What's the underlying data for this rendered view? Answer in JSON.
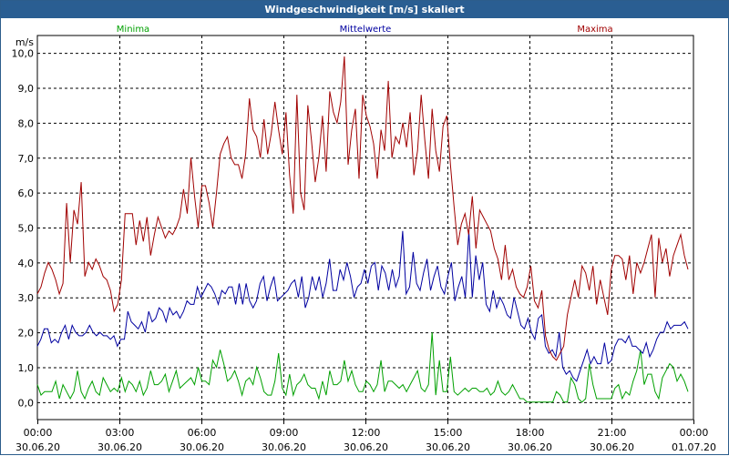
{
  "window": {
    "title": "Windgeschwindigkeit [m/s] skaliert"
  },
  "chart_data": {
    "type": "line",
    "ylabel": "m/s",
    "ylim": [
      -0.5,
      10.5
    ],
    "y_ticks": [
      "0,0",
      "1,0",
      "2,0",
      "3,0",
      "4,0",
      "5,0",
      "6,0",
      "7,0",
      "8,0",
      "9,0",
      "10,0"
    ],
    "y_tick_values": [
      0,
      1,
      2,
      3,
      4,
      5,
      6,
      7,
      8,
      9,
      10
    ],
    "x_ticks": [
      {
        "time": "00:00",
        "date": "30.06.20",
        "hour": 0
      },
      {
        "time": "03:00",
        "date": "30.06.20",
        "hour": 3
      },
      {
        "time": "06:00",
        "date": "30.06.20",
        "hour": 6
      },
      {
        "time": "09:00",
        "date": "30.06.20",
        "hour": 9
      },
      {
        "time": "12:00",
        "date": "30.06.20",
        "hour": 12
      },
      {
        "time": "15:00",
        "date": "30.06.20",
        "hour": 15
      },
      {
        "time": "18:00",
        "date": "30.06.20",
        "hour": 18
      },
      {
        "time": "21:00",
        "date": "30.06.20",
        "hour": 21
      },
      {
        "time": "00:00",
        "date": "01.07.20",
        "hour": 24
      }
    ],
    "grid": true,
    "series": [
      {
        "name": "Minima",
        "color": "#00a000",
        "values": [
          0.5,
          0.2,
          0.3,
          0.3,
          0.3,
          0.6,
          0.1,
          0.5,
          0.3,
          0.1,
          0.3,
          0.9,
          0.3,
          0.1,
          0.4,
          0.6,
          0.3,
          0.2,
          0.7,
          0.5,
          0.3,
          0.4,
          0.3,
          0.7,
          0.3,
          0.6,
          0.5,
          0.3,
          0.6,
          0.2,
          0.4,
          0.9,
          0.5,
          0.5,
          0.6,
          0.8,
          0.3,
          0.6,
          0.9,
          0.4,
          0.5,
          0.6,
          0.7,
          0.5,
          1.0,
          0.6,
          0.6,
          0.5,
          1.2,
          1.0,
          1.5,
          1.1,
          0.6,
          0.7,
          0.9,
          0.6,
          0.2,
          0.6,
          0.7,
          0.5,
          1.0,
          0.7,
          0.3,
          0.2,
          0.2,
          0.6,
          1.4,
          0.4,
          0.2,
          0.8,
          0.2,
          0.5,
          0.6,
          0.8,
          0.5,
          0.4,
          0.4,
          0.1,
          0.6,
          0.2,
          0.9,
          0.5,
          0.5,
          0.6,
          1.2,
          0.6,
          0.9,
          0.5,
          0.3,
          0.3,
          0.6,
          0.5,
          0.3,
          0.5,
          1.2,
          0.3,
          0.6,
          0.6,
          0.5,
          0.4,
          0.5,
          0.3,
          0.5,
          0.7,
          0.9,
          0.4,
          0.3,
          0.5,
          2.0,
          0.2,
          1.2,
          0.3,
          0.3,
          1.3,
          0.3,
          0.2,
          0.3,
          0.4,
          0.3,
          0.4,
          0.4,
          0.3,
          0.3,
          0.4,
          0.2,
          0.3,
          0.6,
          0.3,
          0.2,
          0.3,
          0.5,
          0.3,
          0.1,
          0.1,
          0.0,
          0.0,
          0.0,
          0.0,
          0.0,
          0.0,
          0.0,
          0.0,
          0.3,
          0.2,
          0.0,
          0.0,
          0.7,
          0.5,
          0.1,
          0.0,
          0.1,
          1.1,
          0.5,
          0.1,
          0.1,
          0.1,
          0.1,
          0.1,
          0.4,
          0.5,
          0.1,
          0.3,
          0.2,
          0.6,
          0.9,
          1.5,
          0.5,
          0.8,
          0.8,
          0.3,
          0.1,
          0.7,
          0.9,
          1.1,
          1.0,
          0.6,
          0.8,
          0.6,
          0.3
        ]
      },
      {
        "name": "Mittelwerte",
        "color": "#0000a0",
        "values": [
          1.6,
          1.8,
          2.1,
          2.1,
          1.7,
          1.8,
          1.7,
          2.0,
          2.2,
          1.8,
          2.2,
          2.0,
          1.9,
          1.9,
          2.0,
          2.2,
          2.0,
          1.9,
          2.0,
          1.9,
          1.9,
          1.8,
          1.9,
          1.6,
          1.8,
          1.8,
          2.6,
          2.3,
          2.2,
          2.1,
          2.3,
          2.0,
          2.6,
          2.3,
          2.4,
          2.7,
          2.6,
          2.3,
          2.7,
          2.5,
          2.6,
          2.4,
          2.6,
          2.9,
          2.8,
          2.8,
          3.3,
          3.0,
          3.2,
          3.4,
          3.3,
          3.1,
          2.8,
          3.2,
          3.1,
          3.3,
          3.3,
          2.8,
          3.4,
          2.8,
          3.4,
          2.9,
          2.7,
          2.9,
          3.4,
          3.6,
          2.9,
          3.3,
          3.6,
          2.9,
          3.0,
          3.1,
          3.2,
          3.4,
          3.5,
          3.0,
          3.6,
          2.7,
          3.0,
          3.6,
          3.2,
          3.6,
          3.0,
          3.4,
          4.1,
          3.2,
          3.2,
          3.8,
          3.5,
          4.0,
          3.6,
          3.0,
          3.3,
          3.4,
          3.8,
          3.4,
          3.9,
          4.0,
          3.2,
          3.9,
          3.7,
          3.2,
          3.8,
          3.3,
          3.6,
          4.9,
          3.1,
          3.3,
          4.3,
          3.4,
          3.2,
          3.7,
          4.1,
          3.2,
          3.6,
          3.9,
          3.3,
          3.1,
          3.6,
          4.0,
          2.9,
          3.3,
          3.6,
          3.0,
          4.9,
          3.0,
          4.2,
          3.5,
          4.0,
          2.8,
          2.6,
          3.2,
          2.7,
          3.0,
          2.8,
          2.5,
          2.4,
          3.0,
          2.6,
          2.2,
          2.1,
          2.4,
          2.0,
          1.8,
          2.4,
          2.5,
          1.6,
          1.4,
          1.5,
          1.3,
          2.0,
          1.0,
          0.8,
          0.9,
          0.7,
          0.6,
          0.9,
          1.2,
          1.5,
          1.1,
          1.3,
          1.1,
          1.1,
          1.7,
          1.1,
          1.2,
          1.6,
          1.8,
          1.8,
          1.7,
          1.9,
          1.6,
          1.6,
          1.5,
          1.4,
          1.7,
          1.3,
          1.5,
          1.8,
          2.0,
          2.0,
          2.3,
          2.1,
          2.2,
          2.2,
          2.2,
          2.3,
          2.1
        ]
      },
      {
        "name": "Maxima",
        "color": "#a00000",
        "values": [
          3.1,
          3.3,
          3.7,
          4.0,
          3.8,
          3.5,
          3.1,
          3.4,
          5.7,
          4.0,
          5.5,
          5.1,
          6.3,
          3.6,
          4.0,
          3.8,
          4.1,
          3.9,
          3.6,
          3.5,
          3.2,
          2.6,
          2.8,
          3.5,
          5.4,
          5.4,
          5.4,
          4.5,
          5.2,
          4.6,
          5.3,
          4.2,
          4.8,
          5.3,
          5.0,
          4.7,
          4.9,
          4.8,
          5.0,
          5.3,
          6.1,
          5.4,
          7.0,
          5.9,
          5.0,
          6.2,
          6.2,
          5.7,
          5.0,
          6.0,
          7.1,
          7.4,
          7.6,
          7.0,
          6.8,
          6.8,
          6.4,
          7.1,
          8.7,
          7.8,
          7.6,
          7.0,
          8.1,
          7.1,
          7.7,
          8.6,
          7.8,
          7.1,
          8.3,
          6.5,
          5.4,
          8.8,
          6.0,
          5.5,
          8.5,
          7.5,
          6.3,
          7.0,
          8.2,
          6.6,
          8.9,
          8.3,
          8.0,
          8.6,
          9.9,
          6.8,
          7.8,
          8.4,
          6.4,
          8.8,
          8.2,
          7.9,
          7.4,
          6.4,
          7.8,
          7.2,
          9.2,
          7.0,
          7.6,
          7.4,
          8.0,
          7.3,
          8.3,
          6.5,
          7.2,
          8.8,
          7.5,
          6.4,
          8.4,
          7.2,
          6.6,
          7.9,
          8.2,
          6.8,
          5.6,
          4.5,
          5.1,
          5.4,
          4.8,
          5.9,
          4.4,
          5.5,
          5.3,
          5.1,
          4.9,
          4.4,
          4.1,
          3.5,
          4.5,
          3.5,
          3.8,
          3.3,
          3.1,
          3.0,
          3.3,
          3.9,
          2.9,
          2.7,
          3.2,
          1.9,
          1.5,
          1.3,
          1.2,
          1.4,
          1.6,
          2.5,
          3.0,
          3.5,
          3.0,
          3.9,
          3.7,
          3.2,
          3.9,
          2.8,
          3.5,
          3.0,
          2.5,
          3.8,
          4.2,
          4.2,
          4.1,
          3.5,
          4.2,
          3.1,
          4.0,
          3.7,
          4.0,
          4.4,
          4.8,
          3.0,
          4.7,
          4.0,
          4.4,
          3.6,
          4.2,
          4.5,
          4.8,
          4.2,
          3.8
        ]
      }
    ]
  }
}
